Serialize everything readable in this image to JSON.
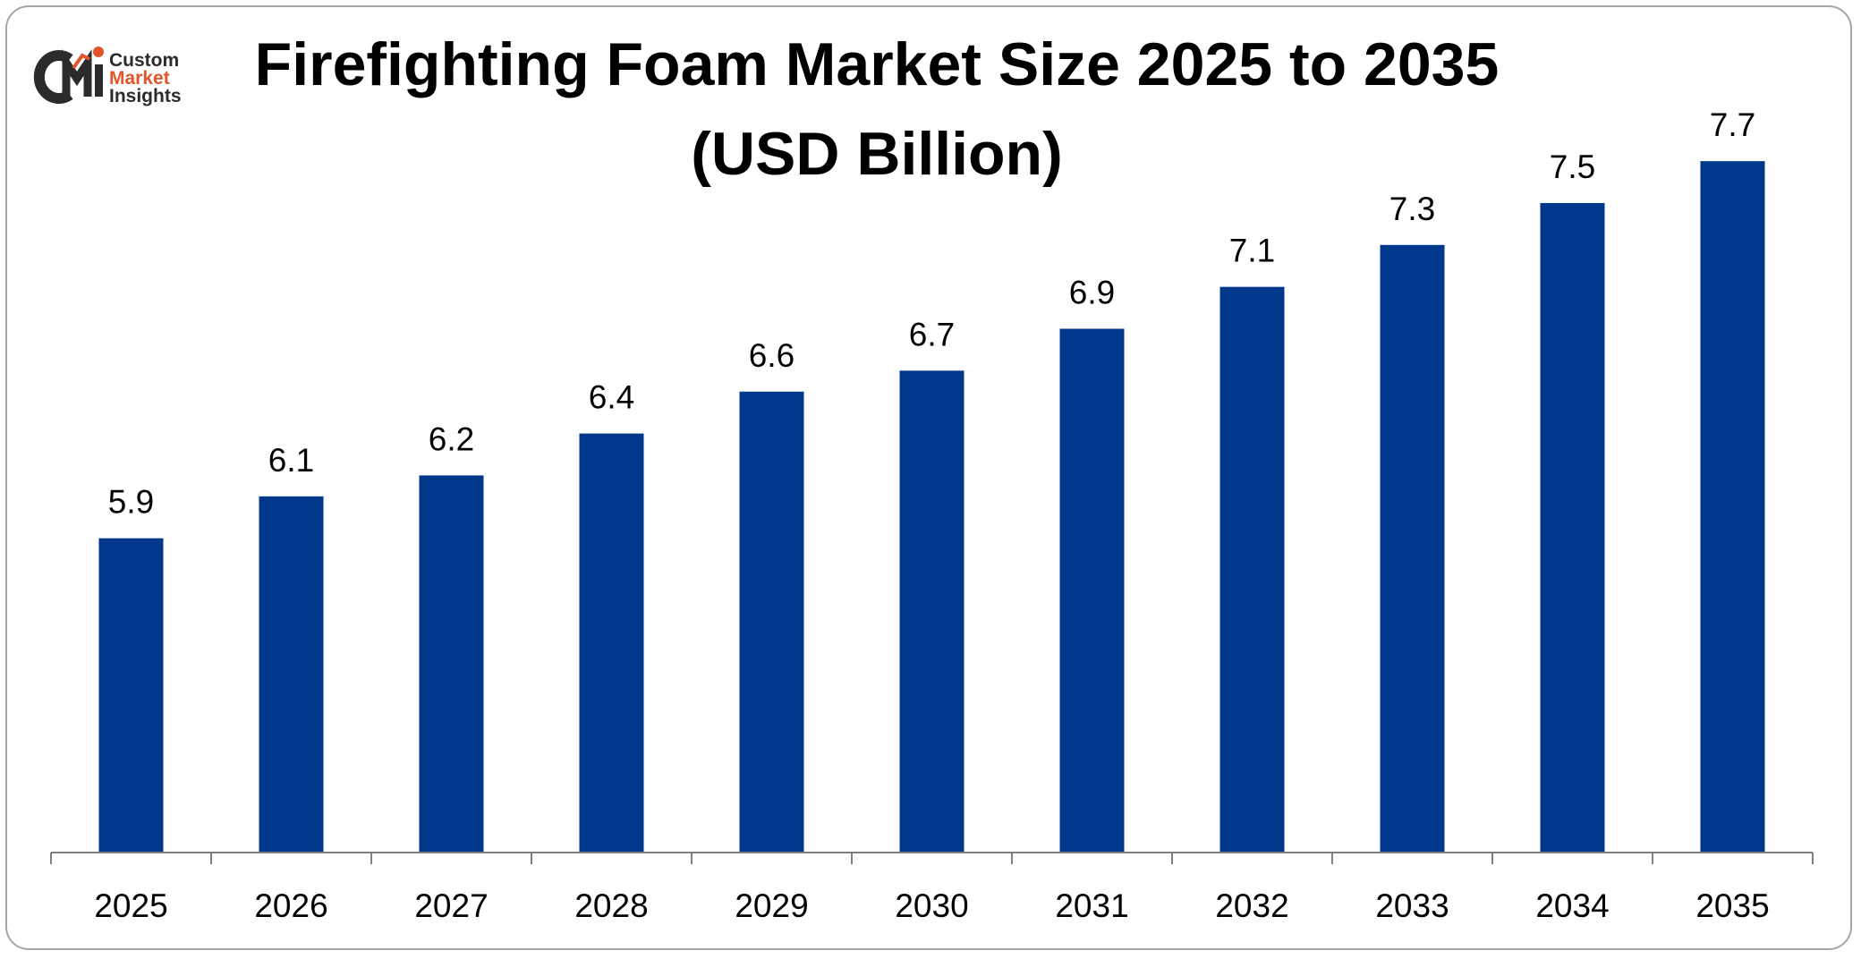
{
  "title_line1": "Firefighting Foam Market Size 2025 to 2035",
  "title_line2": "(USD Billion)",
  "logo": {
    "mark": "CMI",
    "line1": "Custom",
    "line2": "Market",
    "line3": "Insights",
    "colors": {
      "dark": "#2b2b2b",
      "accent": "#e2542b"
    }
  },
  "colors": {
    "bar": "#00388c",
    "axis": "#7f7f7f",
    "frame": "#a6a6a6"
  },
  "chart_data": {
    "type": "bar",
    "categories": [
      "2025",
      "2026",
      "2027",
      "2028",
      "2029",
      "2030",
      "2031",
      "2032",
      "2033",
      "2034",
      "2035"
    ],
    "values": [
      5.9,
      6.1,
      6.2,
      6.4,
      6.6,
      6.7,
      6.9,
      7.1,
      7.3,
      7.5,
      7.7
    ],
    "data_labels": [
      "5.9",
      "6.1",
      "6.2",
      "6.4",
      "6.6",
      "6.7",
      "6.9",
      "7.1",
      "7.3",
      "7.5",
      "7.7"
    ],
    "title": "Firefighting Foam Market Size 2025 to 2035 (USD Billion)",
    "xlabel": "",
    "ylabel": "",
    "ylim": [
      4.4,
      7.85
    ],
    "grid": false,
    "legend": "none"
  }
}
